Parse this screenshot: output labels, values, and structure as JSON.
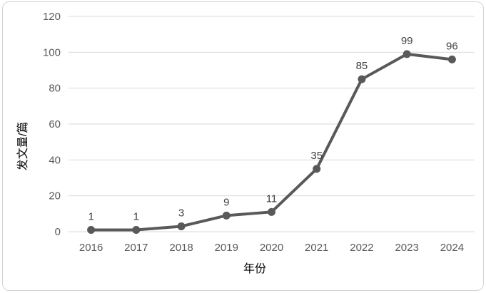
{
  "chart_data": {
    "type": "line",
    "title": "",
    "xlabel": "年份",
    "ylabel": "发文量/篇",
    "categories": [
      "2016",
      "2017",
      "2018",
      "2019",
      "2020",
      "2021",
      "2022",
      "2023",
      "2024"
    ],
    "values": [
      1,
      1,
      3,
      9,
      11,
      35,
      85,
      99,
      96
    ],
    "data_labels": [
      "1",
      "1",
      "3",
      "9",
      "11",
      "35",
      "85",
      "99",
      "96"
    ],
    "ylim": [
      0,
      120
    ],
    "yticks": [
      0,
      20,
      40,
      60,
      80,
      100,
      120
    ],
    "ytick_labels": [
      "0",
      "20",
      "40",
      "60",
      "80",
      "100",
      "120"
    ],
    "grid": "horizontal",
    "legend_position": "none",
    "show_data_labels": true,
    "colors": {
      "line": "#595959",
      "marker": "#595959",
      "gridline": "#d9d9d9",
      "tick_label": "#595959",
      "data_label": "#404040",
      "axis_title": "#4a4a4a",
      "background": "#ffffff",
      "frame_border": "#d4d4d4"
    }
  }
}
